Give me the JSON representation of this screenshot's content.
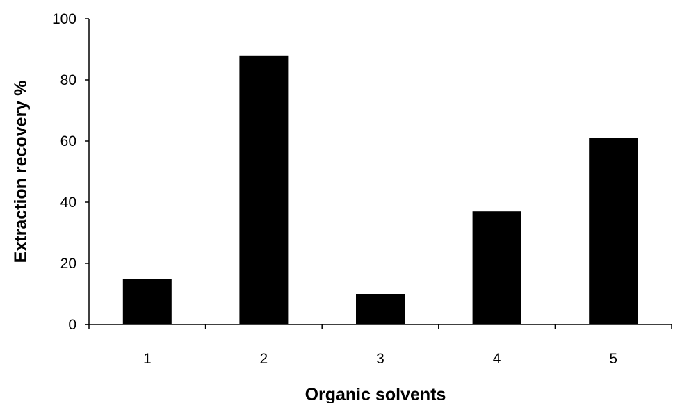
{
  "chart_data": {
    "type": "bar",
    "categories": [
      "1",
      "2",
      "3",
      "4",
      "5"
    ],
    "values": [
      15,
      88,
      10,
      37,
      61
    ],
    "title": "",
    "xlabel": "Organic solvents",
    "ylabel": "Extraction recovery %",
    "ylim": [
      0,
      100
    ],
    "yticks": [
      0,
      20,
      40,
      60,
      80,
      100
    ],
    "grid": false,
    "legend": "none",
    "bar_color": "#000000",
    "axis_color": "#000000"
  }
}
